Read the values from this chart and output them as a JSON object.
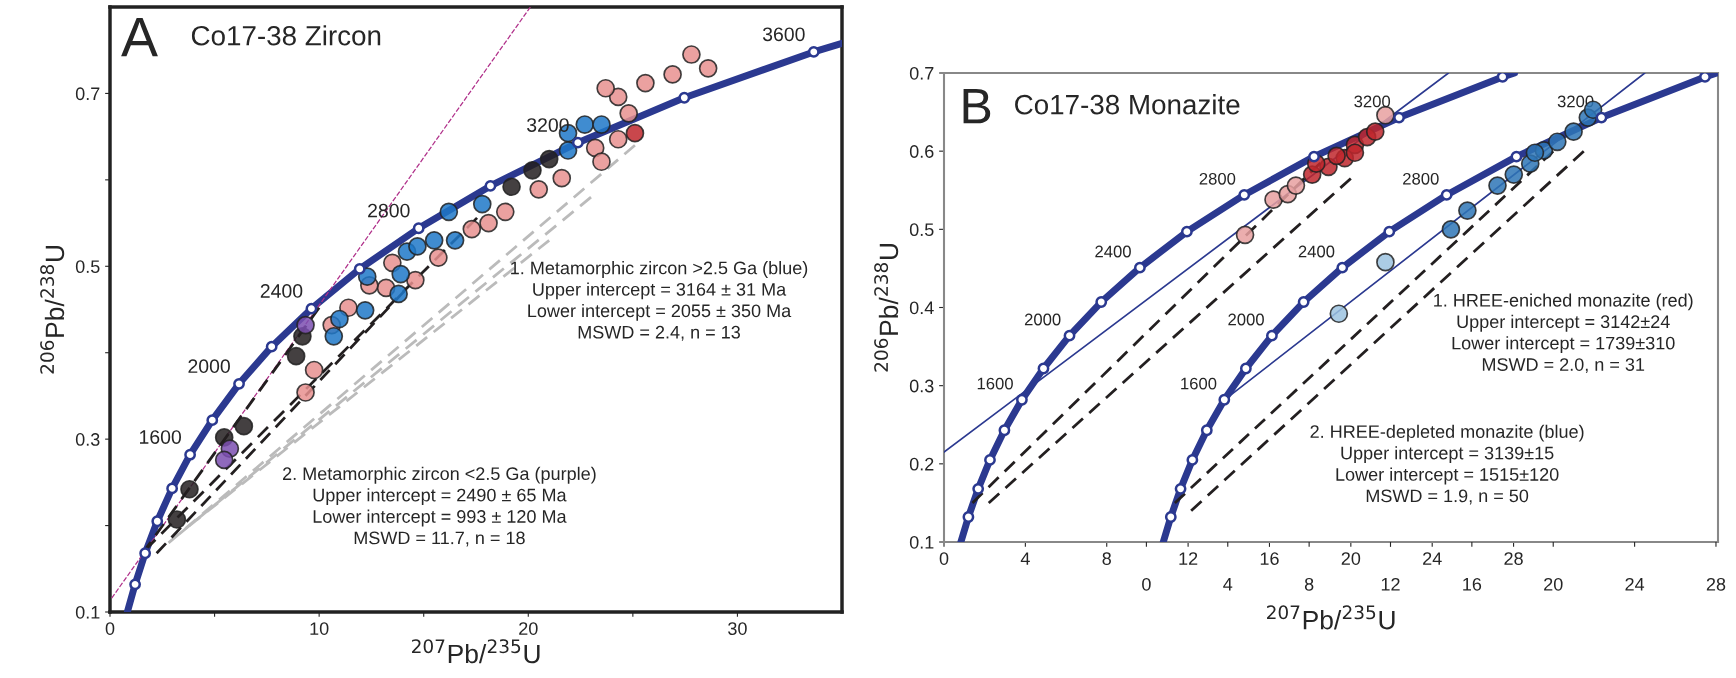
{
  "chart_data": [
    {
      "type": "scatter",
      "title": "Co17-38 Zircon",
      "xlabel": "$^{207}$Pb/$^{235}$U",
      "ylabel": "$^{206}$Pb/$^{238}$U",
      "xlim": [
        0,
        35
      ],
      "ylim": [
        0.1,
        0.8
      ],
      "xticks": [
        0,
        {
          "value": 5,
          "label": null
        },
        10,
        {
          "value": 15,
          "label": null
        },
        20,
        {
          "value": 25,
          "label": null
        },
        30
      ],
      "yticks": [
        0.1,
        {
          "value": 0.2,
          "label": null
        },
        0.3,
        {
          "value": 0.4,
          "label": null
        },
        0.5,
        {
          "value": 0.6,
          "label": null
        },
        0.7
      ],
      "series": [
        {
          "type": "line",
          "line_style": "dotted",
          "color": "#b0308a",
          "x": [
            0.08,
            20.1
          ],
          "values": [
            0.116,
            0.8
          ]
        },
        {
          "type": "line",
          "line_style": "dashed",
          "color": "#bbbbbb",
          "x": [
            2.8,
            25.1
          ],
          "values": [
            0.18,
            0.64
          ]
        },
        {
          "type": "line",
          "line_style": "dashed",
          "color": "#bbbbbb",
          "x": [
            3.3,
            23.0
          ],
          "values": [
            0.19,
            0.58
          ]
        },
        {
          "type": "line",
          "line_style": "dashed",
          "color": "#bbbbbb",
          "x": [
            3.8,
            21.0
          ],
          "values": [
            0.2,
            0.53
          ]
        },
        {
          "type": "line",
          "line_style": "dashed",
          "color": "#231f20",
          "x": [
            1.56,
            10.0
          ],
          "values": [
            0.168,
            0.452
          ]
        },
        {
          "type": "line",
          "line_style": "dashed",
          "color": "#231f20",
          "x": [
            2.23,
            14.06
          ],
          "values": [
            0.168,
            0.471
          ]
        },
        {
          "type": "line",
          "line_style": "dashed",
          "color": "#231f20",
          "x": [
            1.69,
            17.55
          ],
          "values": [
            0.172,
            0.556
          ]
        },
        {
          "type": "line",
          "line_style": "solid",
          "color": "#2b3990",
          "x": [
            0.83,
            1.2,
            1.68,
            2.26,
            2.97,
            3.83,
            4.89,
            6.17,
            7.73,
            9.63,
            11.94,
            14.76,
            18.19,
            22.37,
            27.46,
            33.65,
            35
          ],
          "values": [
            0.1,
            0.132,
            0.168,
            0.205,
            0.243,
            0.282,
            0.322,
            0.364,
            0.407,
            0.451,
            0.497,
            0.544,
            0.593,
            0.643,
            0.695,
            0.748,
            0.758
          ]
        },
        {
          "color": "#e8908f",
          "x": [
            27.8,
            28.6,
            26.9,
            25.6,
            24.3,
            23.7,
            24.8,
            23.2,
            24.3,
            23.5,
            21.6,
            20.5,
            18.9,
            18.1,
            17.3,
            15.7,
            14.6,
            13.5,
            13.2,
            12.4,
            11.4,
            10.6,
            9.76,
            9.35
          ],
          "values": [
            0.745,
            0.729,
            0.722,
            0.712,
            0.696,
            0.706,
            0.677,
            0.637,
            0.647,
            0.621,
            0.602,
            0.589,
            0.563,
            0.55,
            0.543,
            0.51,
            0.484,
            0.504,
            0.475,
            0.478,
            0.452,
            0.432,
            0.38,
            0.354
          ]
        },
        {
          "color": "#c0272d",
          "x": [
            25.1
          ],
          "values": [
            0.654
          ]
        },
        {
          "color": "#231f20",
          "x": [
            9.2,
            8.9,
            19.2,
            20.2,
            21.0,
            5.46,
            6.4,
            3.8,
            3.2
          ],
          "values": [
            0.419,
            0.396,
            0.592,
            0.611,
            0.624,
            0.302,
            0.315,
            0.242,
            0.207
          ]
        },
        {
          "color": "#7b4fb0",
          "x": [
            5.73,
            5.46,
            9.35
          ],
          "values": [
            0.289,
            0.276,
            0.432
          ]
        },
        {
          "color": "#1f78c8",
          "x": [
            10.7,
            10.97,
            12.2,
            12.3,
            13.8,
            13.9,
            14.2,
            14.7,
            15.5,
            16.2,
            16.5,
            17.8,
            21.9,
            22.7,
            23.5,
            21.9
          ],
          "values": [
            0.419,
            0.439,
            0.449,
            0.488,
            0.468,
            0.491,
            0.517,
            0.523,
            0.53,
            0.563,
            0.53,
            0.572,
            0.654,
            0.664,
            0.664,
            0.634
          ]
        },
        {
          "color": "#ffffff",
          "x": [
            1.2,
            1.68,
            2.26,
            2.97,
            3.83,
            4.89,
            6.17,
            7.73,
            9.63,
            11.94,
            14.76,
            18.19,
            22.37,
            27.46,
            33.65
          ],
          "values": [
            0.132,
            0.168,
            0.205,
            0.243,
            0.282,
            0.322,
            0.364,
            0.407,
            0.451,
            0.497,
            0.544,
            0.593,
            0.643,
            0.695,
            0.748
          ]
        }
      ],
      "annotations": [
        "A",
        "1. Metamorphic zircon >2.5 Ga (blue)\nUpper intercept = 3164 ± 31 Ma\nLower intercept = 2055 ± 350 Ma\nMSWD = 2.4, n = 13",
        "2. Metamorphic zircon <2.5 Ga (purple)\nUpper intercept = 2490 ± 65 Ma\nLower intercept = 993 ± 120 Ma\nMSWD = 11.7, n = 18",
        {
          "text": "1600",
          "x": 3.83,
          "y": 0.282
        },
        {
          "text": "2000",
          "x": 6.17,
          "y": 0.364
        },
        {
          "text": "2400",
          "x": 9.63,
          "y": 0.451
        },
        {
          "text": "2800",
          "x": 14.76,
          "y": 0.544
        },
        {
          "text": "3200",
          "x": 22.37,
          "y": 0.643
        },
        {
          "text": "3600",
          "x": 33.65,
          "y": 0.748
        }
      ]
    },
    {
      "type": "scatter",
      "title": "Co17-38 Monazite",
      "xlabel": "$^{207}$Pb/$^{235}$U",
      "ylabel": "$^{206}$Pb/$^{238}$U",
      "xlim": [
        0,
        38.05
      ],
      "ylim": [
        0.1,
        0.7
      ],
      "xticks": [
        0,
        4,
        8,
        12,
        16,
        20,
        24,
        28
      ],
      "x2lim": [
        -9.95,
        28.1
      ],
      "x2ticks": [
        0,
        4,
        8,
        12,
        16,
        20,
        24,
        28
      ],
      "yticks": [
        0.1,
        0.2,
        0.3,
        0.4,
        0.5,
        0.6,
        0.7
      ],
      "series": [
        {
          "type": "line",
          "line_style": "solid",
          "color": "#2b3990",
          "x": [
            0,
            24.8
          ],
          "values": [
            0.215,
            0.7
          ]
        },
        {
          "type": "line",
          "line_style": "solid",
          "color": "#2b3990",
          "axis": "x2",
          "x": [
            3.95,
            24.5
          ],
          "values": [
            0.284,
            0.7
          ]
        },
        {
          "type": "line",
          "line_style": "dashed",
          "color": "#231f20",
          "x": [
            1.4,
            18.5
          ],
          "values": [
            0.15,
            0.585
          ]
        },
        {
          "type": "line",
          "line_style": "dashed",
          "color": "#231f20",
          "x": [
            2.2,
            20.0
          ],
          "values": [
            0.15,
            0.565
          ]
        },
        {
          "type": "line",
          "line_style": "dashed",
          "color": "#231f20",
          "axis": "x2",
          "x": [
            1.4,
            20.0
          ],
          "values": [
            0.15,
            0.6
          ]
        },
        {
          "type": "line",
          "line_style": "dashed",
          "color": "#231f20",
          "axis": "x2",
          "x": [
            2.2,
            21.5
          ],
          "values": [
            0.14,
            0.6
          ]
        },
        {
          "type": "line",
          "line_style": "solid",
          "color": "#2b3990",
          "x": [
            0.83,
            1.2,
            1.68,
            2.26,
            2.97,
            3.83,
            4.89,
            6.17,
            7.73,
            9.63,
            11.94,
            14.76,
            18.19,
            22.37,
            27.46,
            28.05
          ],
          "values": [
            0.1,
            0.132,
            0.168,
            0.205,
            0.243,
            0.282,
            0.322,
            0.364,
            0.407,
            0.451,
            0.497,
            0.544,
            0.593,
            0.643,
            0.695,
            0.7
          ]
        },
        {
          "type": "line",
          "line_style": "solid",
          "color": "#2b3990",
          "axis": "x2",
          "x": [
            0.83,
            1.2,
            1.68,
            2.26,
            2.97,
            3.83,
            4.89,
            6.17,
            7.73,
            9.63,
            11.94,
            14.76,
            18.19,
            22.37,
            27.46,
            28.05
          ],
          "values": [
            0.1,
            0.132,
            0.168,
            0.205,
            0.243,
            0.282,
            0.322,
            0.364,
            0.407,
            0.451,
            0.497,
            0.544,
            0.593,
            0.643,
            0.695,
            0.7
          ]
        },
        {
          "color": "#e8a0a0",
          "x": [
            16.2,
            16.9,
            14.8,
            17.3,
            21.7
          ],
          "values": [
            0.538,
            0.545,
            0.493,
            0.556,
            0.646
          ]
        },
        {
          "color": "#c0272d",
          "x": [
            18.1,
            18.9,
            19.7,
            20.2,
            20.8,
            21.2,
            18.3,
            19.3,
            20.2
          ],
          "values": [
            0.57,
            0.58,
            0.591,
            0.608,
            0.618,
            0.625,
            0.584,
            0.594,
            0.598
          ]
        },
        {
          "color": "#9cc3e0",
          "axis": "x2",
          "x": [
            9.46,
            11.75
          ],
          "values": [
            0.392,
            0.458
          ]
        },
        {
          "color": "#2e75b6",
          "axis": "x2",
          "x": [
            14.97,
            15.78,
            17.26,
            18.06,
            18.87,
            19.54,
            20.2,
            21.0,
            21.7,
            21.96,
            19.1
          ],
          "values": [
            0.5,
            0.524,
            0.556,
            0.57,
            0.584,
            0.601,
            0.612,
            0.625,
            0.643,
            0.653,
            0.598
          ]
        },
        {
          "color": "#ffffff",
          "x": [
            1.2,
            1.68,
            2.26,
            2.97,
            3.83,
            4.89,
            6.17,
            7.73,
            9.63,
            11.94,
            14.76,
            18.19,
            22.37,
            27.46
          ],
          "values": [
            0.132,
            0.168,
            0.205,
            0.243,
            0.282,
            0.322,
            0.364,
            0.407,
            0.451,
            0.497,
            0.544,
            0.593,
            0.643,
            0.695
          ]
        },
        {
          "color": "#ffffff",
          "axis": "x2",
          "x": [
            1.2,
            1.68,
            2.26,
            2.97,
            3.83,
            4.89,
            6.17,
            7.73,
            9.63,
            11.94,
            14.76,
            18.19,
            22.37,
            27.46
          ],
          "values": [
            0.132,
            0.168,
            0.205,
            0.243,
            0.282,
            0.322,
            0.364,
            0.407,
            0.451,
            0.497,
            0.544,
            0.593,
            0.643,
            0.695
          ]
        }
      ],
      "annotations": [
        "B",
        "1. HREE-eniched monazite (red)\nUpper intercept = 3142±24\nLower intercept = 1739±310\nMSWD = 2.0, n = 31",
        "2. HREE-depleted monazite (blue)\nUpper intercept = 3139±15\nLower intercept = 1515±120\nMSWD = 1.9, n = 50",
        {
          "text": "1600",
          "x": 3.83,
          "y": 0.282
        },
        {
          "text": "2000",
          "x": 6.17,
          "y": 0.364
        },
        {
          "text": "2400",
          "x": 9.63,
          "y": 0.451
        },
        {
          "text": "2800",
          "x": 14.76,
          "y": 0.544
        },
        {
          "text": "3200",
          "x": 22.37,
          "y": 0.643
        },
        {
          "text": "1600",
          "x": 13.83,
          "y": 0.282
        },
        {
          "text": "2000",
          "x": 16.17,
          "y": 0.364
        },
        {
          "text": "2400",
          "x": 19.63,
          "y": 0.451
        },
        {
          "text": "2800",
          "x": 24.76,
          "y": 0.544
        },
        {
          "text": "3200",
          "x": 32.37,
          "y": 0.643
        }
      ]
    }
  ]
}
